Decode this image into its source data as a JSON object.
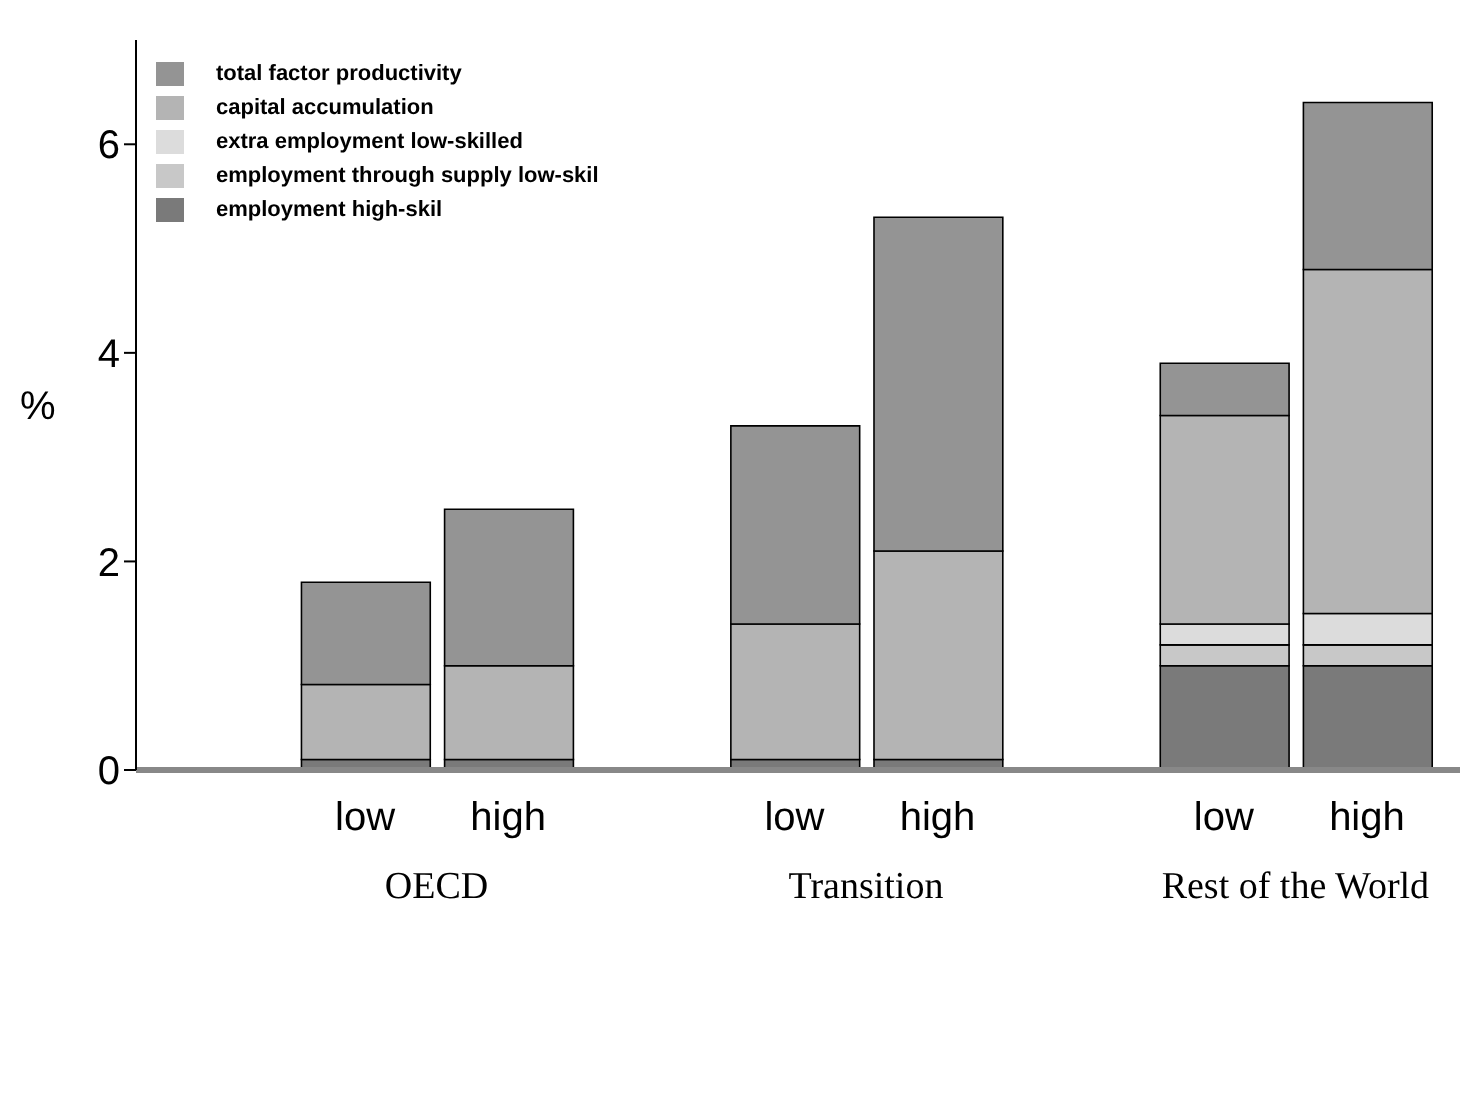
{
  "chart_data": {
    "type": "bar",
    "stacked": true,
    "ylabel": "%",
    "categories": [
      "low",
      "high",
      "low",
      "high",
      "low",
      "high"
    ],
    "annotations": [
      "OECD",
      "Transition",
      "Rest of the World"
    ],
    "series": [
      {
        "name": "employment high-skil",
        "color": "#7a7a7a",
        "values": [
          0.1,
          0.1,
          0.1,
          0.1,
          1.0,
          1.0
        ]
      },
      {
        "name": "employment through supply low-skil",
        "color": "#c8c8c8",
        "values": [
          0,
          0,
          0,
          0,
          0.2,
          0.2
        ]
      },
      {
        "name": "extra employment low-skilled",
        "color": "#dcdcdc",
        "values": [
          0,
          0,
          0,
          0,
          0.2,
          0.3
        ]
      },
      {
        "name": "capital accumulation",
        "color": "#b4b4b4",
        "values": [
          0.72,
          0.9,
          1.3,
          2.0,
          2.0,
          3.3
        ]
      },
      {
        "name": "total factor productivity",
        "color": "#949494",
        "values": [
          0.98,
          1.5,
          1.9,
          3.2,
          0.5,
          1.6
        ]
      }
    ],
    "ylim": [
      0,
      7
    ],
    "yticks": [
      0,
      2,
      4,
      6
    ],
    "grid": false,
    "legend": "top left"
  }
}
